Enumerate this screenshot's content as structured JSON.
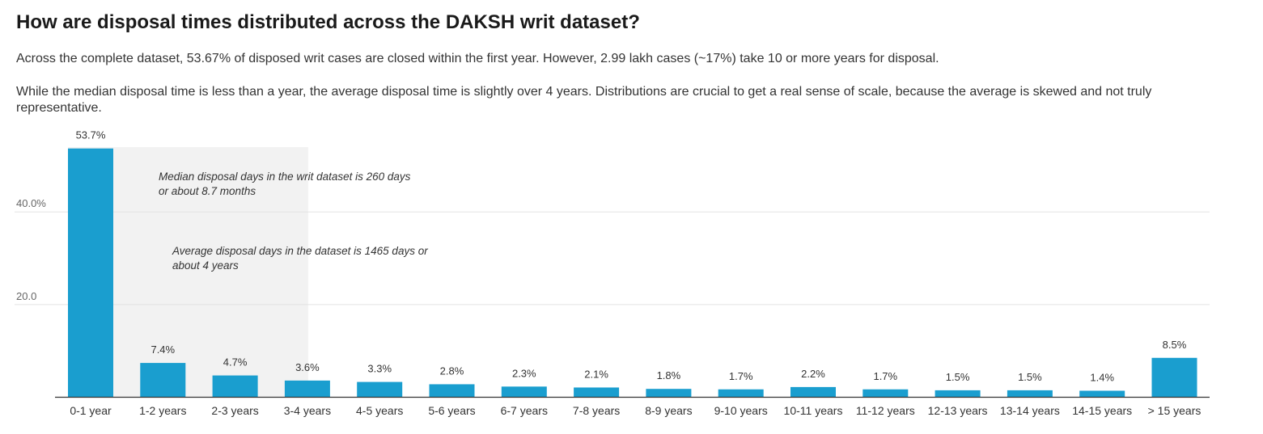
{
  "header": {
    "title": "How are disposal times distributed across the DAKSH writ dataset?",
    "description_1": "Across the complete dataset, 53.67% of disposed writ cases are closed within the first year. However, 2.99 lakh cases (~17%) take 10 or more years for disposal.",
    "description_2": "While the median disposal time is less than a year, the average disposal time is slightly over 4 years. Distributions are crucial to get a real sense of scale, because the average is skewed and not truly representative."
  },
  "chart_data": {
    "type": "bar",
    "categories": [
      "0-1 year",
      "1-2 years",
      "2-3 years",
      "3-4 years",
      "4-5 years",
      "5-6 years",
      "6-7 years",
      "7-8 years",
      "8-9 years",
      "9-10 years",
      "10-11 years",
      "11-12 years",
      "12-13 years",
      "13-14 years",
      "14-15 years",
      "> 15 years"
    ],
    "values": [
      53.7,
      7.4,
      4.7,
      3.6,
      3.3,
      2.8,
      2.3,
      2.1,
      1.8,
      1.7,
      2.2,
      1.7,
      1.5,
      1.5,
      1.4,
      8.5
    ],
    "data_labels": [
      "53.7%",
      "7.4%",
      "4.7%",
      "3.6%",
      "3.3%",
      "2.8%",
      "2.3%",
      "2.1%",
      "1.8%",
      "1.7%",
      "2.2%",
      "1.7%",
      "1.5%",
      "1.5%",
      "1.4%",
      "8.5%"
    ],
    "y_ticks": [
      20,
      40
    ],
    "y_tick_labels": [
      "20.0",
      "40.0%"
    ],
    "ylim": [
      0,
      54
    ],
    "grid": true,
    "bar_color": "#1a9ecf",
    "highlight_region": {
      "from_category": "0-1 year",
      "to_category": "3-4 years",
      "color": "#f2f2f2"
    },
    "annotations": [
      {
        "lines": [
          "Median disposal days in the writ dataset is 260 days",
          "or about 8.7 months"
        ]
      },
      {
        "lines": [
          "Average disposal days in the dataset is 1465 days or",
          "about 4 years"
        ]
      }
    ]
  }
}
